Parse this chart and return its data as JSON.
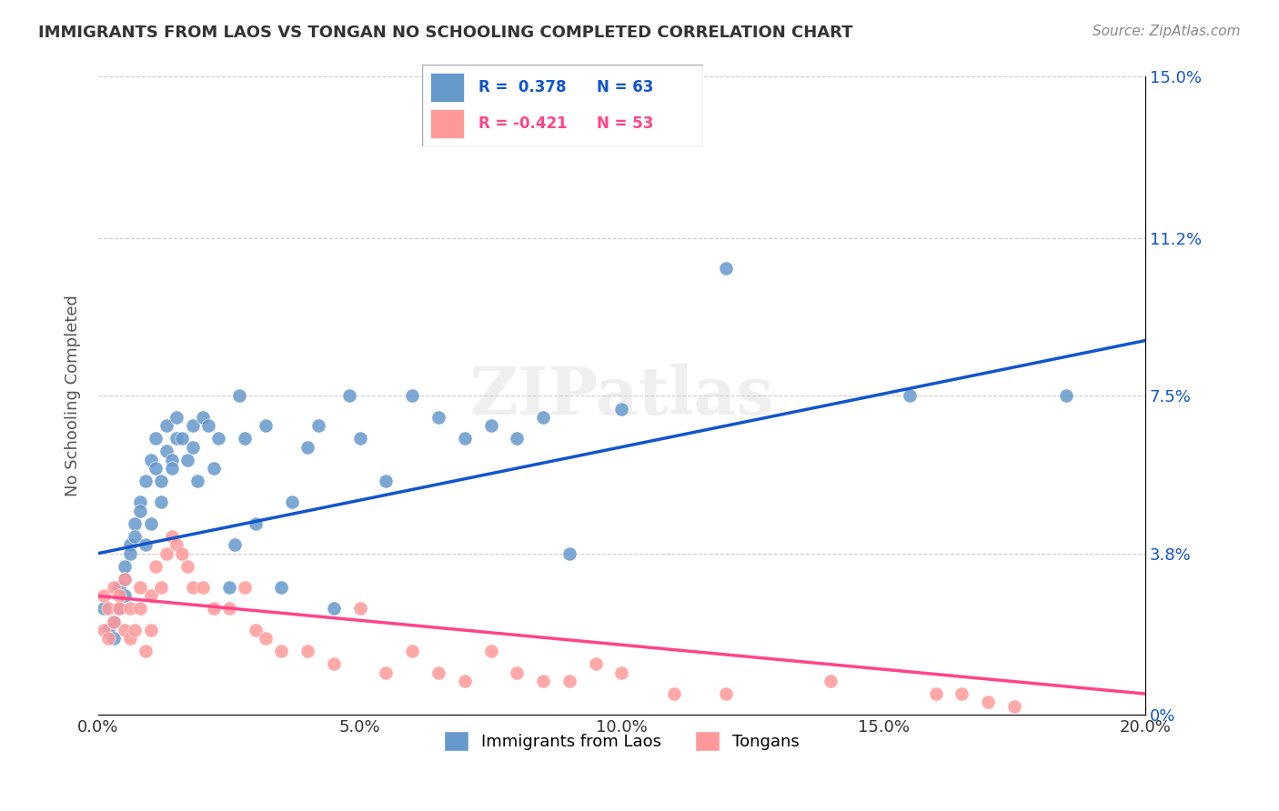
{
  "title": "IMMIGRANTS FROM LAOS VS TONGAN NO SCHOOLING COMPLETED CORRELATION CHART",
  "source": "Source: ZipAtlas.com",
  "xlabel_ticks": [
    "0.0%",
    "5.0%",
    "10.0%",
    "15.0%",
    "20.0%"
  ],
  "xlabel_vals": [
    0.0,
    0.05,
    0.1,
    0.15,
    0.2
  ],
  "ylabel_ticks": [
    "0%",
    "3.8%",
    "7.5%",
    "11.2%",
    "15.0%"
  ],
  "ylabel_vals": [
    0.0,
    0.038,
    0.075,
    0.112,
    0.15
  ],
  "xlim": [
    0.0,
    0.2
  ],
  "ylim": [
    0.0,
    0.15
  ],
  "blue_R": "0.378",
  "blue_N": "63",
  "pink_R": "-0.421",
  "pink_N": "53",
  "blue_color": "#6699CC",
  "pink_color": "#FF9999",
  "blue_line_color": "#1155CC",
  "pink_line_color": "#FF4488",
  "watermark": "ZIPatlas",
  "legend_label_blue": "Immigrants from Laos",
  "legend_label_pink": "Tongans",
  "ylabel": "No Schooling Completed",
  "blue_scatter_x": [
    0.001,
    0.002,
    0.003,
    0.003,
    0.004,
    0.004,
    0.005,
    0.005,
    0.005,
    0.006,
    0.006,
    0.007,
    0.007,
    0.008,
    0.008,
    0.009,
    0.009,
    0.01,
    0.01,
    0.011,
    0.011,
    0.012,
    0.012,
    0.013,
    0.013,
    0.014,
    0.014,
    0.015,
    0.015,
    0.016,
    0.017,
    0.018,
    0.018,
    0.019,
    0.02,
    0.021,
    0.022,
    0.023,
    0.025,
    0.026,
    0.027,
    0.028,
    0.03,
    0.032,
    0.035,
    0.037,
    0.04,
    0.042,
    0.045,
    0.048,
    0.05,
    0.055,
    0.06,
    0.065,
    0.07,
    0.075,
    0.08,
    0.085,
    0.09,
    0.1,
    0.12,
    0.155,
    0.185
  ],
  "blue_scatter_y": [
    0.025,
    0.02,
    0.018,
    0.022,
    0.03,
    0.025,
    0.035,
    0.028,
    0.032,
    0.04,
    0.038,
    0.045,
    0.042,
    0.05,
    0.048,
    0.055,
    0.04,
    0.06,
    0.045,
    0.058,
    0.065,
    0.055,
    0.05,
    0.062,
    0.068,
    0.06,
    0.058,
    0.065,
    0.07,
    0.065,
    0.06,
    0.068,
    0.063,
    0.055,
    0.07,
    0.068,
    0.058,
    0.065,
    0.03,
    0.04,
    0.075,
    0.065,
    0.045,
    0.068,
    0.03,
    0.05,
    0.063,
    0.068,
    0.025,
    0.075,
    0.065,
    0.055,
    0.075,
    0.07,
    0.065,
    0.068,
    0.065,
    0.07,
    0.038,
    0.072,
    0.105,
    0.075,
    0.075
  ],
  "pink_scatter_x": [
    0.001,
    0.001,
    0.002,
    0.002,
    0.003,
    0.003,
    0.004,
    0.004,
    0.005,
    0.005,
    0.006,
    0.006,
    0.007,
    0.008,
    0.008,
    0.009,
    0.01,
    0.01,
    0.011,
    0.012,
    0.013,
    0.014,
    0.015,
    0.016,
    0.017,
    0.018,
    0.02,
    0.022,
    0.025,
    0.028,
    0.03,
    0.032,
    0.035,
    0.04,
    0.045,
    0.05,
    0.055,
    0.06,
    0.065,
    0.07,
    0.075,
    0.08,
    0.085,
    0.09,
    0.095,
    0.1,
    0.11,
    0.12,
    0.14,
    0.16,
    0.165,
    0.17,
    0.175
  ],
  "pink_scatter_y": [
    0.028,
    0.02,
    0.025,
    0.018,
    0.03,
    0.022,
    0.028,
    0.025,
    0.032,
    0.02,
    0.018,
    0.025,
    0.02,
    0.03,
    0.025,
    0.015,
    0.02,
    0.028,
    0.035,
    0.03,
    0.038,
    0.042,
    0.04,
    0.038,
    0.035,
    0.03,
    0.03,
    0.025,
    0.025,
    0.03,
    0.02,
    0.018,
    0.015,
    0.015,
    0.012,
    0.025,
    0.01,
    0.015,
    0.01,
    0.008,
    0.015,
    0.01,
    0.008,
    0.008,
    0.012,
    0.01,
    0.005,
    0.005,
    0.008,
    0.005,
    0.005,
    0.003,
    0.002
  ]
}
